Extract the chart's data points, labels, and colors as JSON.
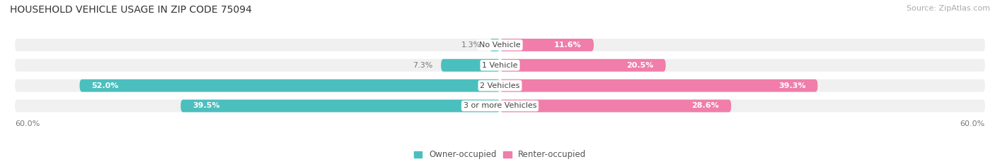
{
  "title": "HOUSEHOLD VEHICLE USAGE IN ZIP CODE 75094",
  "source": "Source: ZipAtlas.com",
  "categories": [
    "No Vehicle",
    "1 Vehicle",
    "2 Vehicles",
    "3 or more Vehicles"
  ],
  "owner_values": [
    1.3,
    7.3,
    52.0,
    39.5
  ],
  "renter_values": [
    11.6,
    20.5,
    39.3,
    28.6
  ],
  "owner_color": "#4bbfbe",
  "renter_color": "#f07daa",
  "background_color": "#ffffff",
  "bar_bg_color": "#f0f0f0",
  "x_max": 60.0,
  "x_min": -60.0,
  "title_fontsize": 10,
  "source_fontsize": 8,
  "label_fontsize": 8,
  "category_fontsize": 8,
  "legend_fontsize": 8.5,
  "bar_height": 0.62,
  "bar_gap": 0.12
}
